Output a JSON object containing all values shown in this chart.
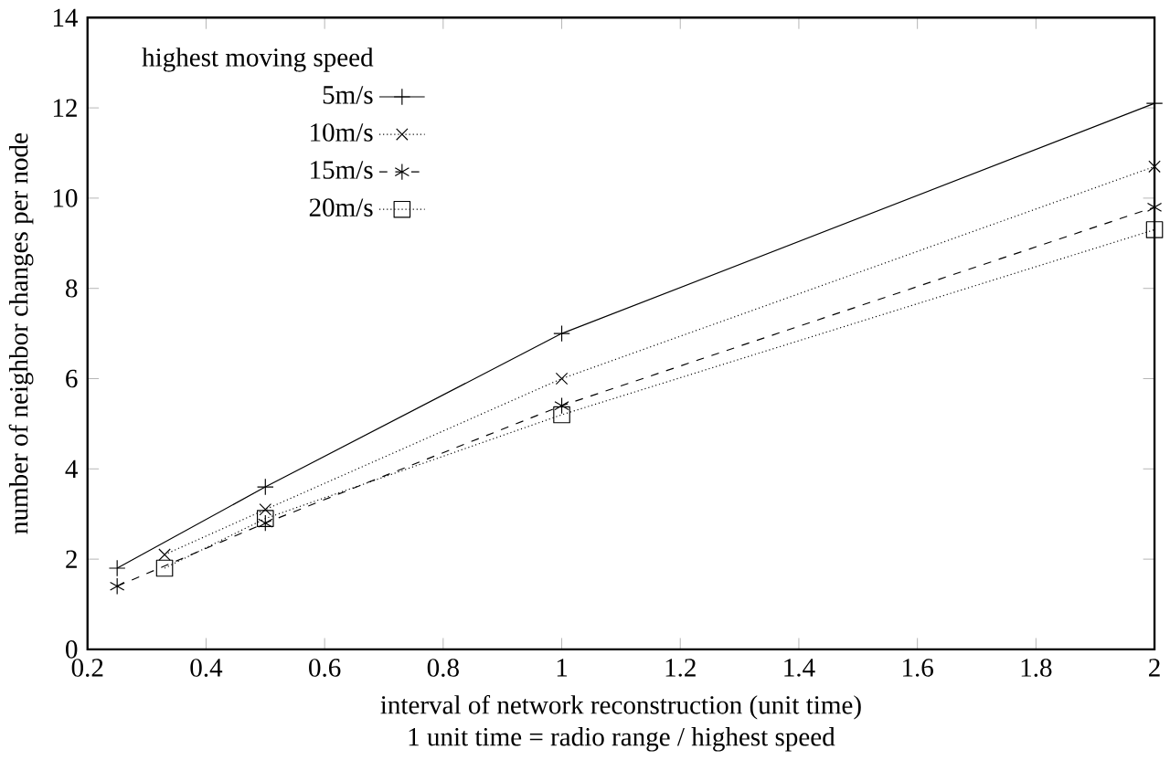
{
  "chart_data": {
    "type": "line",
    "xlabel": "interval of network reconstruction (unit time)",
    "ylabel": "number of neighbor changes per node",
    "annotations": [
      "1 unit time = radio range / highest speed"
    ],
    "legend_title": "highest moving speed",
    "legend": "top left",
    "grid": false,
    "xlim": [
      0.2,
      2
    ],
    "xticks": [
      0.2,
      0.4,
      0.6,
      0.8,
      1,
      1.2,
      1.4,
      1.6,
      1.8,
      2
    ],
    "ylim": [
      0,
      14
    ],
    "yticks": [
      0,
      2,
      4,
      6,
      8,
      10,
      12,
      14
    ],
    "series": [
      {
        "name": "5m/s",
        "color": "#000000",
        "marker": "cross",
        "line_style": "solid",
        "x": [
          0.25,
          0.5,
          1,
          2
        ],
        "values": [
          1.8,
          3.6,
          7.0,
          12.1
        ]
      },
      {
        "name": "10m/s",
        "color": "#000000",
        "marker": "cross",
        "line_style": "dotted",
        "x": [
          0.33,
          0.5,
          1,
          2
        ],
        "values": [
          2.1,
          3.1,
          6.0,
          10.7
        ]
      },
      {
        "name": "15m/s",
        "color": "#000000",
        "marker": "cross",
        "line_style": "dashed",
        "x": [
          0.25,
          0.5,
          1,
          2
        ],
        "values": [
          1.4,
          2.8,
          5.4,
          9.8
        ]
      },
      {
        "name": "20m/s",
        "color": "#000000",
        "marker": "square",
        "line_style": "dotted",
        "x": [
          0.33,
          0.5,
          1,
          2
        ],
        "values": [
          1.8,
          2.9,
          5.2,
          9.3
        ]
      }
    ]
  }
}
